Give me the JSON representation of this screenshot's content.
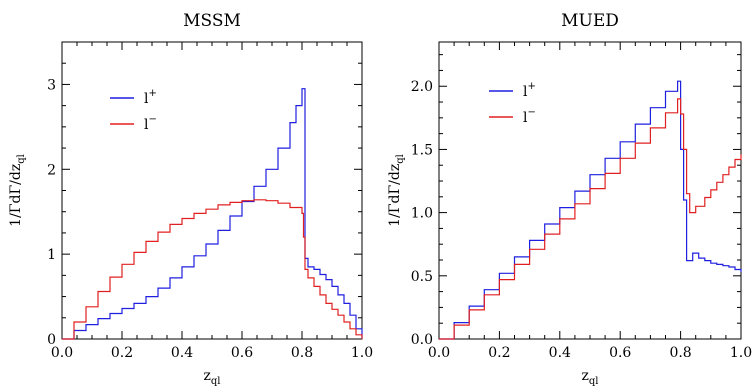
{
  "colors": {
    "l_plus": "#1f1fe0",
    "l_minus": "#e02020",
    "axis": "#000000"
  },
  "chart_data": [
    {
      "type": "line",
      "step": true,
      "title": "MSSM",
      "xlabel_main": "z",
      "xlabel_sub": "ql",
      "ylabel_main": "1/ΓdΓ/dz",
      "ylabel_sub": "ql",
      "xlim": [
        0,
        1
      ],
      "ylim": [
        0,
        3.5
      ],
      "x_ticks": [
        "0.0",
        "0.2",
        "0.4",
        "0.6",
        "0.8",
        "1.0"
      ],
      "y_ticks": [
        "0",
        "1",
        "2",
        "3"
      ],
      "legend_position": "top-left",
      "series": [
        {
          "name": "l+",
          "legend_base": "l",
          "legend_sup": "+",
          "color": "#1f1fe0",
          "x": [
            0,
            0.04,
            0.08,
            0.12,
            0.16,
            0.2,
            0.24,
            0.28,
            0.32,
            0.36,
            0.4,
            0.44,
            0.48,
            0.52,
            0.56,
            0.6,
            0.64,
            0.68,
            0.72,
            0.76,
            0.78,
            0.8,
            0.805,
            0.81,
            0.82,
            0.84,
            0.86,
            0.88,
            0.9,
            0.92,
            0.94,
            0.96,
            0.98,
            1.0
          ],
          "y": [
            0,
            0.1,
            0.17,
            0.24,
            0.3,
            0.36,
            0.42,
            0.5,
            0.6,
            0.72,
            0.85,
            0.98,
            1.12,
            1.28,
            1.45,
            1.62,
            1.8,
            2.0,
            2.25,
            2.55,
            2.75,
            2.95,
            2.95,
            0.95,
            0.85,
            0.82,
            0.76,
            0.7,
            0.62,
            0.52,
            0.42,
            0.28,
            0.12,
            0
          ]
        },
        {
          "name": "l−",
          "legend_base": "l",
          "legend_sup": "−",
          "color": "#e02020",
          "x": [
            0,
            0.04,
            0.08,
            0.12,
            0.16,
            0.2,
            0.24,
            0.28,
            0.32,
            0.36,
            0.4,
            0.44,
            0.48,
            0.52,
            0.56,
            0.6,
            0.64,
            0.68,
            0.72,
            0.76,
            0.8,
            0.805,
            0.81,
            0.82,
            0.84,
            0.86,
            0.88,
            0.9,
            0.92,
            0.94,
            0.96,
            0.98,
            1.0
          ],
          "y": [
            0,
            0.2,
            0.38,
            0.56,
            0.73,
            0.88,
            1.02,
            1.15,
            1.26,
            1.35,
            1.42,
            1.48,
            1.53,
            1.58,
            1.61,
            1.63,
            1.64,
            1.63,
            1.6,
            1.55,
            1.48,
            1.2,
            0.82,
            0.72,
            0.62,
            0.52,
            0.42,
            0.35,
            0.28,
            0.2,
            0.12,
            0.05,
            0
          ]
        }
      ]
    },
    {
      "type": "line",
      "step": true,
      "title": "MUED",
      "xlabel_main": "z",
      "xlabel_sub": "ql",
      "ylabel_main": "1/ΓdΓ/dz",
      "ylabel_sub": "ql",
      "xlim": [
        0,
        1
      ],
      "ylim": [
        0,
        2.35
      ],
      "x_ticks": [
        "0.0",
        "0.2",
        "0.4",
        "0.6",
        "0.8",
        "1.0"
      ],
      "y_ticks": [
        "0.0",
        "0.5",
        "1.0",
        "1.5",
        "2.0"
      ],
      "legend_position": "top-left",
      "series": [
        {
          "name": "l+",
          "legend_base": "l",
          "legend_sup": "+",
          "color": "#1f1fe0",
          "x": [
            0,
            0.05,
            0.1,
            0.15,
            0.2,
            0.25,
            0.3,
            0.35,
            0.4,
            0.45,
            0.5,
            0.55,
            0.6,
            0.65,
            0.7,
            0.75,
            0.79,
            0.8,
            0.81,
            0.82,
            0.84,
            0.86,
            0.88,
            0.9,
            0.92,
            0.94,
            0.96,
            0.98,
            1.0
          ],
          "y": [
            0,
            0.13,
            0.26,
            0.39,
            0.52,
            0.65,
            0.78,
            0.91,
            1.04,
            1.17,
            1.3,
            1.43,
            1.56,
            1.7,
            1.83,
            1.96,
            2.04,
            1.5,
            1.1,
            0.62,
            0.68,
            0.64,
            0.62,
            0.6,
            0.59,
            0.58,
            0.57,
            0.55,
            0.53
          ]
        },
        {
          "name": "l−",
          "legend_base": "l",
          "legend_sup": "−",
          "color": "#e02020",
          "x": [
            0,
            0.05,
            0.1,
            0.15,
            0.2,
            0.25,
            0.3,
            0.35,
            0.4,
            0.45,
            0.5,
            0.55,
            0.6,
            0.65,
            0.7,
            0.75,
            0.79,
            0.8,
            0.81,
            0.82,
            0.83,
            0.85,
            0.88,
            0.9,
            0.92,
            0.94,
            0.96,
            0.98,
            1.0
          ],
          "y": [
            0,
            0.11,
            0.23,
            0.35,
            0.47,
            0.59,
            0.71,
            0.83,
            0.95,
            1.07,
            1.19,
            1.31,
            1.43,
            1.55,
            1.67,
            1.79,
            1.9,
            1.78,
            1.5,
            1.15,
            1.0,
            1.05,
            1.12,
            1.18,
            1.24,
            1.3,
            1.36,
            1.42,
            1.46
          ]
        }
      ]
    }
  ]
}
